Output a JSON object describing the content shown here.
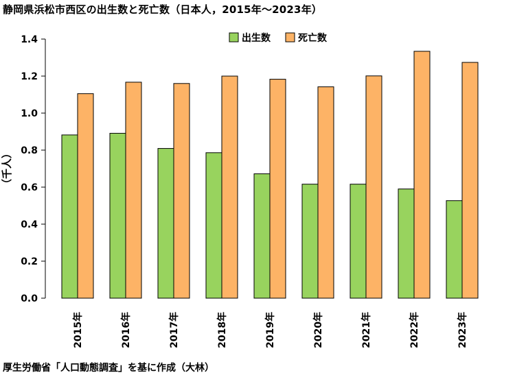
{
  "title": "静岡県浜松市西区の出生数と死亡数（日本人，2015年～2023年）",
  "source": "厚生労働省「人口動態調査」を基に作成（大林）",
  "chart_data": {
    "type": "bar",
    "categories": [
      "2015年",
      "2016年",
      "2017年",
      "2018年",
      "2019年",
      "2020年",
      "2021年",
      "2022年",
      "2023年"
    ],
    "series": [
      {
        "name": "出生数",
        "color": "#98d35e",
        "values": [
          0.882,
          0.891,
          0.809,
          0.786,
          0.672,
          0.616,
          0.616,
          0.59,
          0.527
        ]
      },
      {
        "name": "死亡数",
        "color": "#fdb366",
        "values": [
          1.105,
          1.167,
          1.16,
          1.2,
          1.183,
          1.142,
          1.201,
          1.334,
          1.274
        ]
      }
    ],
    "ylabel": "（千人）",
    "xlabel": "",
    "ylim": [
      0,
      1.4
    ],
    "yticks": [
      "0.0",
      "0.2",
      "0.4",
      "0.6",
      "0.8",
      "1.0",
      "1.2",
      "1.4"
    ],
    "legend": "top-center",
    "grid": false
  }
}
